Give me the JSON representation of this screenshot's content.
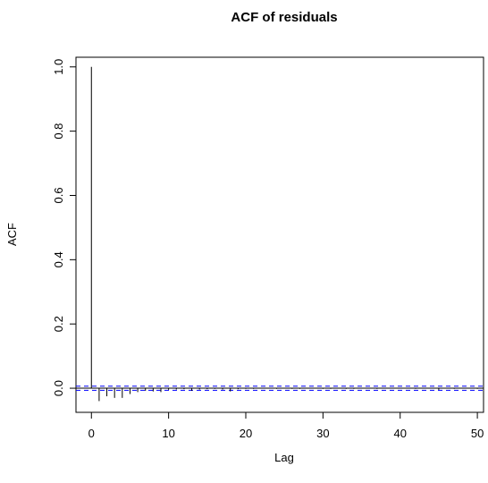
{
  "chart_data": {
    "type": "bar",
    "title": "ACF of residuals",
    "xlabel": "Lag",
    "ylabel": "ACF",
    "xlim": [
      -2,
      50.8
    ],
    "ylim": [
      -0.075,
      1.03
    ],
    "x_ticks": [
      0,
      10,
      20,
      30,
      40,
      50
    ],
    "y_ticks": [
      0.0,
      0.2,
      0.4,
      0.6,
      0.8,
      1.0
    ],
    "x_tick_labels": [
      "0",
      "10",
      "20",
      "30",
      "40",
      "50"
    ],
    "y_tick_labels": [
      "0.0",
      "0.2",
      "0.4",
      "0.6",
      "0.8",
      "1.0"
    ],
    "lags": [
      0,
      1,
      2,
      3,
      4,
      5,
      6,
      7,
      8,
      9,
      10,
      11,
      12,
      13,
      14,
      15,
      16,
      17,
      18,
      19,
      20,
      21,
      22,
      23,
      24,
      25,
      26,
      27,
      28,
      29,
      30,
      31,
      32,
      33,
      34,
      35,
      36,
      37,
      38,
      39,
      40,
      41,
      42,
      43,
      44,
      45,
      46,
      47,
      48,
      49,
      50
    ],
    "acf": [
      1.0,
      -0.04,
      -0.025,
      -0.03,
      -0.03,
      -0.018,
      -0.012,
      -0.008,
      -0.01,
      -0.012,
      -0.005,
      -0.004,
      -0.003,
      -0.008,
      -0.004,
      -0.003,
      -0.002,
      -0.004,
      -0.01,
      -0.003,
      -0.002,
      -0.002,
      -0.001,
      0.001,
      -0.002,
      -0.001,
      -0.002,
      -0.002,
      -0.001,
      -0.001,
      -0.002,
      -0.002,
      -0.001,
      -0.002,
      -0.002,
      -0.001,
      -0.001,
      -0.002,
      -0.001,
      -0.001,
      0.001,
      -0.001,
      -0.002,
      -0.001,
      -0.001,
      -0.005,
      -0.001,
      -0.002,
      -0.001,
      -0.001,
      -0.002
    ],
    "confidence_bound": 0.0065,
    "zero_line": true,
    "grid": false,
    "colors": {
      "bars": "#000000",
      "confidence": "#0000ff",
      "zero": "#000000"
    }
  }
}
